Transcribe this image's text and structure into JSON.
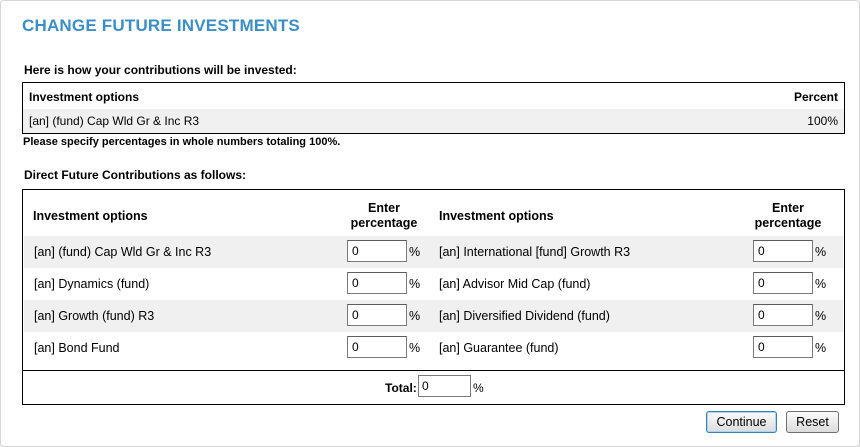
{
  "page": {
    "title": "CHANGE FUTURE INVESTMENTS"
  },
  "summary": {
    "intro": "Here is how your contributions will be invested:",
    "header_option": "Investment options",
    "header_percent": "Percent",
    "rows": [
      {
        "option": "[an] (fund) Cap Wld Gr & Inc R3",
        "percent": "100%"
      }
    ],
    "note": "Please specify percentages in whole numbers totaling 100%."
  },
  "direct": {
    "title": "Direct Future Contributions as follows:",
    "header_option": "Investment options",
    "header_enter_line1": "Enter",
    "header_enter_line2": "percentage",
    "percent_sign": "%",
    "left": [
      {
        "option": "[an] (fund) Cap Wld Gr & Inc R3",
        "value": "0"
      },
      {
        "option": "[an] Dynamics (fund)",
        "value": "0"
      },
      {
        "option": "[an] Growth (fund) R3",
        "value": "0"
      },
      {
        "option": "[an] Bond Fund",
        "value": "0"
      }
    ],
    "right": [
      {
        "option": "[an] International [fund] Growth R3",
        "value": "0"
      },
      {
        "option": "[an] Advisor Mid Cap (fund)",
        "value": "0"
      },
      {
        "option": "[an] Diversified Dividend (fund)",
        "value": "0"
      },
      {
        "option": "[an] Guarantee (fund)",
        "value": "0"
      }
    ],
    "total_label": "Total:",
    "total_value": "0"
  },
  "buttons": {
    "continue": "Continue",
    "reset": "Reset"
  },
  "colors": {
    "title": "#3a8fc8",
    "row_shade": "#f0f0f0"
  }
}
